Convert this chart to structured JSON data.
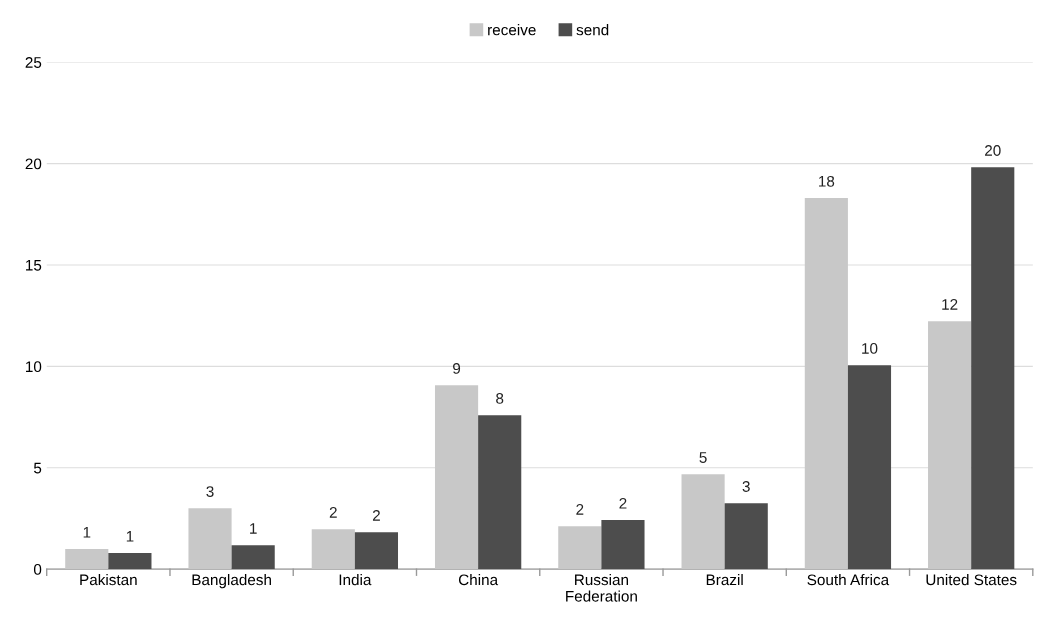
{
  "chart_data": {
    "type": "bar",
    "categories": [
      "Pakistan",
      "Bangladesh",
      "India",
      "China",
      "Russian\nFederation",
      "Brazil",
      "South Africa",
      "United States"
    ],
    "series": [
      {
        "name": "receive",
        "color": "#c8c8c8",
        "values": [
          0.99,
          3.0,
          1.97,
          9.07,
          2.12,
          4.68,
          18.3,
          12.23
        ],
        "value_labels": [
          "1",
          "3",
          "2",
          "9",
          "2",
          "5",
          "18",
          "12"
        ]
      },
      {
        "name": "send",
        "color": "#4d4d4d",
        "values": [
          0.79,
          1.18,
          1.82,
          7.59,
          2.42,
          3.25,
          10.06,
          19.82
        ],
        "value_labels": [
          "1",
          "1",
          "2",
          "8",
          "2",
          "3",
          "10",
          "20"
        ]
      }
    ],
    "ylim": [
      0,
      25
    ],
    "yticks": [
      0,
      5,
      10,
      15,
      20,
      25
    ],
    "grid": "y",
    "legend": "top"
  }
}
